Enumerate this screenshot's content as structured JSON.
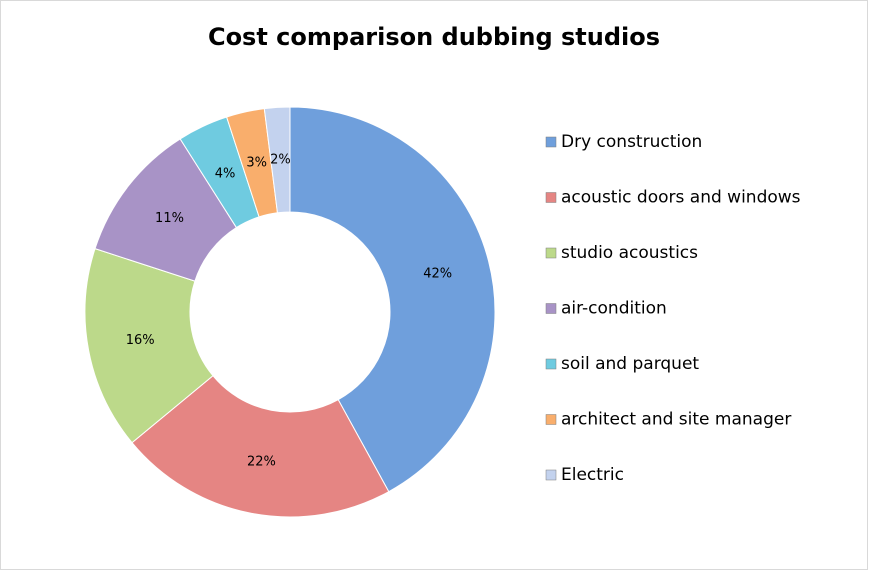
{
  "chart_data": {
    "type": "donut",
    "title": "Cost comparison dubbing studios",
    "categories": [
      "Dry construction",
      "acoustic doors and windows",
      "studio acoustics",
      "air-condition",
      "soil and parquet",
      "architect and site manager",
      "Electric"
    ],
    "values": [
      42,
      22,
      16,
      11,
      4,
      3,
      2
    ],
    "value_labels": [
      "42%",
      "22%",
      "16%",
      "11%",
      "4%",
      "3%",
      "2%"
    ],
    "colors": [
      "#6f9fdc",
      "#e58583",
      "#bcd98a",
      "#a893c6",
      "#6fcbe0",
      "#f9ae6c",
      "#c3d2ee"
    ],
    "legend": "right"
  }
}
